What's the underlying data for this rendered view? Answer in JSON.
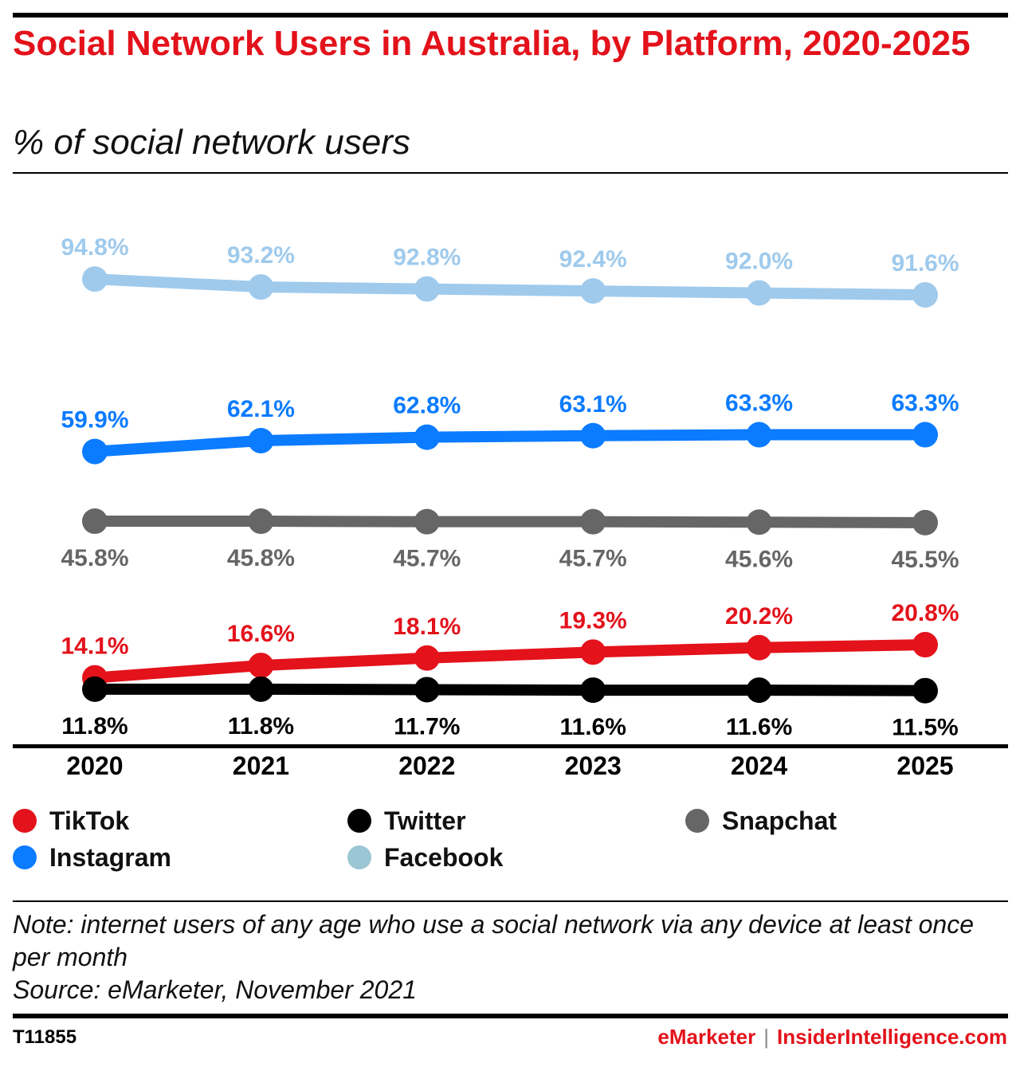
{
  "header": {
    "title": "Social Network Users in Australia, by Platform, 2020-2025",
    "subtitle": "% of social network users"
  },
  "chart_data": {
    "type": "line",
    "title": "Social Network Users in Australia, by Platform, 2020-2025",
    "subtitle": "% of social network users",
    "x": [
      "2020",
      "2021",
      "2022",
      "2023",
      "2024",
      "2025"
    ],
    "ylim": [
      0,
      100
    ],
    "grid": false,
    "legend_position": "bottom",
    "series": [
      {
        "name": "Facebook",
        "color": "#9fcaec",
        "values": [
          94.8,
          93.2,
          92.8,
          92.4,
          92.0,
          91.6
        ],
        "labels": [
          "94.8%",
          "93.2%",
          "92.8%",
          "92.4%",
          "92.0%",
          "91.6%"
        ],
        "label_side": "above"
      },
      {
        "name": "Instagram",
        "color": "#0b7bff",
        "values": [
          59.9,
          62.1,
          62.8,
          63.1,
          63.3,
          63.3
        ],
        "labels": [
          "59.9%",
          "62.1%",
          "62.8%",
          "63.1%",
          "63.3%",
          "63.3%"
        ],
        "label_side": "above"
      },
      {
        "name": "Snapchat",
        "color": "#666666",
        "values": [
          45.8,
          45.8,
          45.7,
          45.7,
          45.6,
          45.5
        ],
        "labels": [
          "45.8%",
          "45.8%",
          "45.7%",
          "45.7%",
          "45.6%",
          "45.5%"
        ],
        "label_side": "below"
      },
      {
        "name": "TikTok",
        "color": "#e3121b",
        "values": [
          14.1,
          16.6,
          18.1,
          19.3,
          20.2,
          20.8
        ],
        "labels": [
          "14.1%",
          "16.6%",
          "18.1%",
          "19.3%",
          "20.2%",
          "20.8%"
        ],
        "label_side": "above"
      },
      {
        "name": "Twitter",
        "color": "#000000",
        "values": [
          11.8,
          11.8,
          11.7,
          11.6,
          11.6,
          11.5
        ],
        "labels": [
          "11.8%",
          "11.8%",
          "11.7%",
          "11.6%",
          "11.6%",
          "11.5%"
        ],
        "label_side": "below"
      }
    ]
  },
  "legend": {
    "items": [
      {
        "name": "TikTok",
        "color": "#e3121b"
      },
      {
        "name": "Twitter",
        "color": "#000000"
      },
      {
        "name": "Snapchat",
        "color": "#666666"
      },
      {
        "name": "Instagram",
        "color": "#0b7bff"
      },
      {
        "name": "Facebook",
        "color": "#9bc6d4"
      }
    ]
  },
  "notes": {
    "note": "Note: internet users of any age who use a social network via any device at least once per month",
    "source": "Source: eMarketer, November 2021"
  },
  "footer": {
    "id": "T11855",
    "brand_left": "eMarketer",
    "separator": "|",
    "brand_right": "InsiderIntelligence.com",
    "brand_color": "#e3121b"
  }
}
